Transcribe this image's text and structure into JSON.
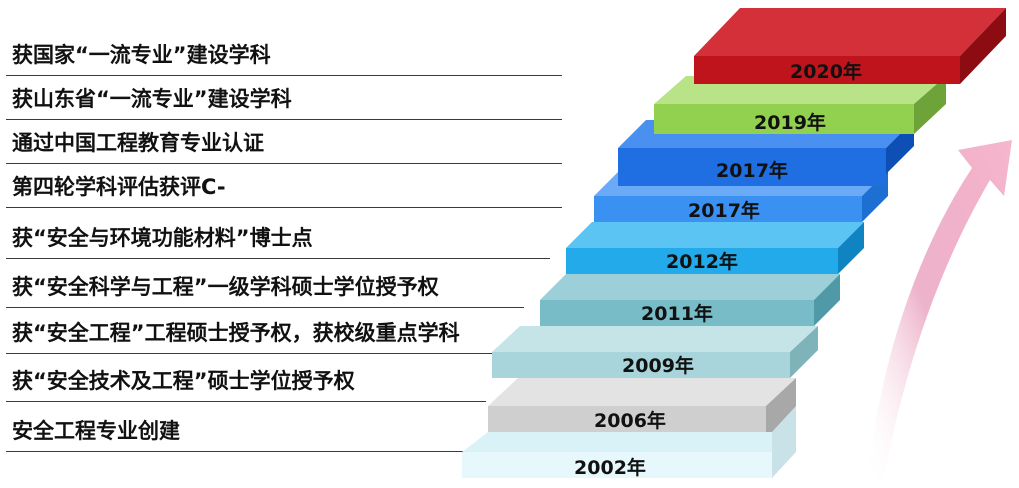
{
  "milestones": [
    {
      "text": "获国家“一流专业”建设学科",
      "year": "2020年"
    },
    {
      "text": "获山东省“一流专业”建设学科",
      "year": "2019年"
    },
    {
      "text": "通过中国工程教育专业认证",
      "year": "2017年"
    },
    {
      "text": "第四轮学科评估获评C-",
      "year": "2017年"
    },
    {
      "text": "获“安全与环境功能材料”博士点",
      "year": "2012年"
    },
    {
      "text": "获“安全科学与工程”一级学科硕士学位授予权",
      "year": "2011年"
    },
    {
      "text": "获“安全工程”工程硕士授予权，获校级重点学科",
      "year": "2009年"
    },
    {
      "text": "获“安全技术及工程”硕士学位授予权",
      "year": "2006年"
    },
    {
      "text": "安全工程专业创建",
      "year": "2002年"
    }
  ],
  "colors": {
    "step_2020": "#c0141c",
    "step_2019": "#92d050",
    "step_2017a": "#1e6fe0",
    "step_2017b": "#3a8ff0",
    "step_2012": "#1fa8e8",
    "step_2011": "#76b8c4",
    "step_2009": "#a6d4da",
    "step_2006": "#cccccc",
    "step_2002": "#e4f7fb",
    "arrow": "#f3a3bf"
  }
}
